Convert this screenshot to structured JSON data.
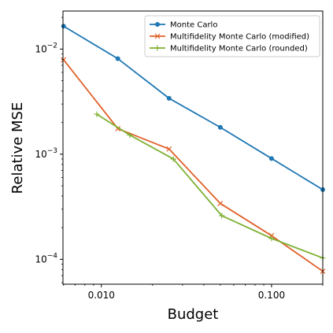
{
  "chart_data": {
    "type": "line",
    "title": "",
    "xlabel": "Budget",
    "ylabel": "Relative MSE",
    "x_scale": "log",
    "y_scale": "log",
    "xlim": [
      0.00595,
      0.2
    ],
    "ylim": [
      5.8e-05,
      0.023
    ],
    "x_ticks": [
      {
        "value": 0.01,
        "label": "0.010"
      },
      {
        "value": 0.1,
        "label": "0.100"
      }
    ],
    "y_ticks": [
      {
        "value": 0.0001,
        "base": "10",
        "exp": "−4"
      },
      {
        "value": 0.001,
        "base": "10",
        "exp": "−3"
      },
      {
        "value": 0.01,
        "base": "10",
        "exp": "−2"
      }
    ],
    "grid": false,
    "legend_position": "top-right",
    "series": [
      {
        "name": "Monte Carlo",
        "color": "#1f77b4",
        "marker": "circle",
        "x": [
          0.006,
          0.0125,
          0.025,
          0.05,
          0.1,
          0.2
        ],
        "y": [
          0.0165,
          0.0081,
          0.0034,
          0.0018,
          0.00091,
          0.00046
        ]
      },
      {
        "name": "Multifidelity Monte Carlo (modified)",
        "color": "#e0622a",
        "marker": "x",
        "x": [
          0.006,
          0.0125,
          0.025,
          0.05,
          0.1,
          0.2
        ],
        "y": [
          0.0079,
          0.00175,
          0.00112,
          0.00034,
          0.000168,
          7.7e-05
        ]
      },
      {
        "name": "Multifidelity Monte Carlo (rounded)",
        "color": "#7fb135",
        "marker": "plus",
        "x": [
          0.0094,
          0.0147,
          0.0265,
          0.051,
          0.1,
          0.2
        ],
        "y": [
          0.0024,
          0.00152,
          0.0009,
          0.00026,
          0.000158,
          0.000103
        ]
      }
    ]
  }
}
